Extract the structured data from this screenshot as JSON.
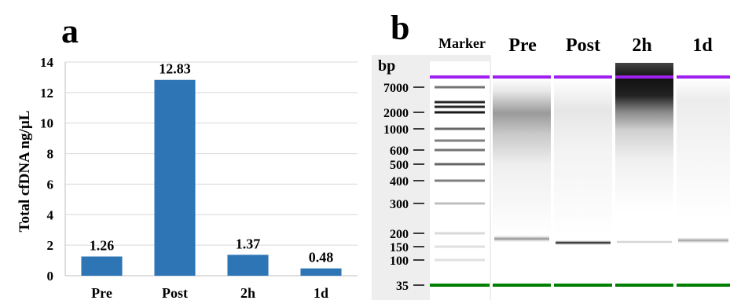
{
  "panels": {
    "a": "a",
    "b": "b"
  },
  "chart_data": [
    {
      "type": "bar",
      "panel": "a",
      "categories": [
        "Pre",
        "Post",
        "2h",
        "1d"
      ],
      "values": [
        1.26,
        12.83,
        1.37,
        0.48
      ],
      "value_labels": [
        "1.26",
        "12.83",
        "1.37",
        "0.48"
      ],
      "ylabel": "Total cfDNA ng/µL",
      "ylim": [
        0,
        14
      ],
      "yticks": [
        0,
        2,
        4,
        6,
        8,
        10,
        12,
        14
      ],
      "grid": true,
      "bar_color": "#2e75b6"
    },
    {
      "type": "gel",
      "panel": "b",
      "lanes": [
        "Marker",
        "Pre",
        "Post",
        "2h",
        "1d"
      ],
      "y_unit_label": "bp",
      "bp_ticks": [
        7000,
        2000,
        1000,
        600,
        500,
        400,
        300,
        200,
        150,
        100,
        35
      ],
      "upper_marker_color": "#a020f0",
      "lower_marker_color": "#008000"
    }
  ]
}
